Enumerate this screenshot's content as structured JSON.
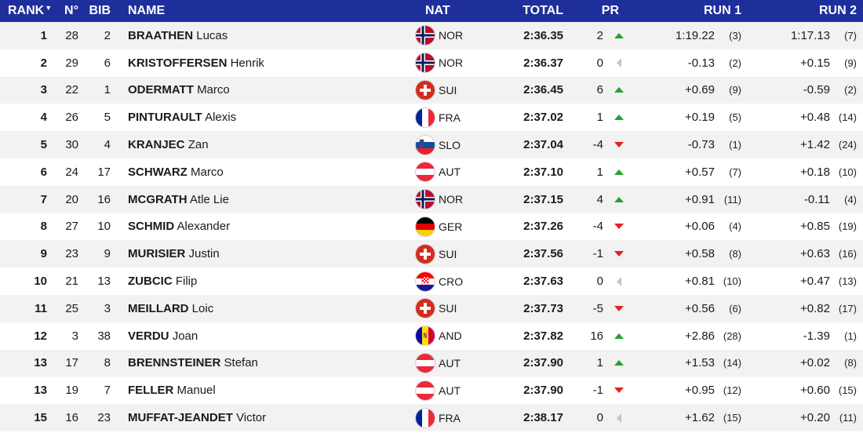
{
  "header": {
    "rank": "RANK",
    "sort_arrow": "▼",
    "no": "N°",
    "bib": "BIB",
    "name": "NAME",
    "nat": "NAT",
    "total": "TOTAL",
    "pr": "PR",
    "run1": "RUN 1",
    "run2": "RUN 2"
  },
  "colors": {
    "header_bg": "#1e2f9c",
    "up": "#22a52e",
    "down": "#e32020",
    "same": "#c4c4c4"
  },
  "rows": [
    {
      "rank": "1",
      "no": "28",
      "bib": "2",
      "last": "BRAATHEN",
      "first": "Lucas",
      "nat": "NOR",
      "total": "2:36.35",
      "pr": "2",
      "trend": "up",
      "run1": "1:19.22",
      "run1_pos": "(3)",
      "run2": "1:17.13",
      "run2_pos": "(7)"
    },
    {
      "rank": "2",
      "no": "29",
      "bib": "6",
      "last": "KRISTOFFERSEN",
      "first": "Henrik",
      "nat": "NOR",
      "total": "2:36.37",
      "pr": "0",
      "trend": "same",
      "run1": "-0.13",
      "run1_pos": "(2)",
      "run2": "+0.15",
      "run2_pos": "(9)"
    },
    {
      "rank": "3",
      "no": "22",
      "bib": "1",
      "last": "ODERMATT",
      "first": "Marco",
      "nat": "SUI",
      "total": "2:36.45",
      "pr": "6",
      "trend": "up",
      "run1": "+0.69",
      "run1_pos": "(9)",
      "run2": "-0.59",
      "run2_pos": "(2)"
    },
    {
      "rank": "4",
      "no": "26",
      "bib": "5",
      "last": "PINTURAULT",
      "first": "Alexis",
      "nat": "FRA",
      "total": "2:37.02",
      "pr": "1",
      "trend": "up",
      "run1": "+0.19",
      "run1_pos": "(5)",
      "run2": "+0.48",
      "run2_pos": "(14)"
    },
    {
      "rank": "5",
      "no": "30",
      "bib": "4",
      "last": "KRANJEC",
      "first": "Zan",
      "nat": "SLO",
      "total": "2:37.04",
      "pr": "-4",
      "trend": "down",
      "run1": "-0.73",
      "run1_pos": "(1)",
      "run2": "+1.42",
      "run2_pos": "(24)"
    },
    {
      "rank": "6",
      "no": "24",
      "bib": "17",
      "last": "SCHWARZ",
      "first": "Marco",
      "nat": "AUT",
      "total": "2:37.10",
      "pr": "1",
      "trend": "up",
      "run1": "+0.57",
      "run1_pos": "(7)",
      "run2": "+0.18",
      "run2_pos": "(10)"
    },
    {
      "rank": "7",
      "no": "20",
      "bib": "16",
      "last": "MCGRATH",
      "first": "Atle Lie",
      "nat": "NOR",
      "total": "2:37.15",
      "pr": "4",
      "trend": "up",
      "run1": "+0.91",
      "run1_pos": "(11)",
      "run2": "-0.11",
      "run2_pos": "(4)"
    },
    {
      "rank": "8",
      "no": "27",
      "bib": "10",
      "last": "SCHMID",
      "first": "Alexander",
      "nat": "GER",
      "total": "2:37.26",
      "pr": "-4",
      "trend": "down",
      "run1": "+0.06",
      "run1_pos": "(4)",
      "run2": "+0.85",
      "run2_pos": "(19)"
    },
    {
      "rank": "9",
      "no": "23",
      "bib": "9",
      "last": "MURISIER",
      "first": "Justin",
      "nat": "SUI",
      "total": "2:37.56",
      "pr": "-1",
      "trend": "down",
      "run1": "+0.58",
      "run1_pos": "(8)",
      "run2": "+0.63",
      "run2_pos": "(16)"
    },
    {
      "rank": "10",
      "no": "21",
      "bib": "13",
      "last": "ZUBCIC",
      "first": "Filip",
      "nat": "CRO",
      "total": "2:37.63",
      "pr": "0",
      "trend": "same",
      "run1": "+0.81",
      "run1_pos": "(10)",
      "run2": "+0.47",
      "run2_pos": "(13)"
    },
    {
      "rank": "11",
      "no": "25",
      "bib": "3",
      "last": "MEILLARD",
      "first": "Loic",
      "nat": "SUI",
      "total": "2:37.73",
      "pr": "-5",
      "trend": "down",
      "run1": "+0.56",
      "run1_pos": "(6)",
      "run2": "+0.82",
      "run2_pos": "(17)"
    },
    {
      "rank": "12",
      "no": "3",
      "bib": "38",
      "last": "VERDU",
      "first": "Joan",
      "nat": "AND",
      "total": "2:37.82",
      "pr": "16",
      "trend": "up",
      "run1": "+2.86",
      "run1_pos": "(28)",
      "run2": "-1.39",
      "run2_pos": "(1)"
    },
    {
      "rank": "13",
      "no": "17",
      "bib": "8",
      "last": "BRENNSTEINER",
      "first": "Stefan",
      "nat": "AUT",
      "total": "2:37.90",
      "pr": "1",
      "trend": "up",
      "run1": "+1.53",
      "run1_pos": "(14)",
      "run2": "+0.02",
      "run2_pos": "(8)"
    },
    {
      "rank": "13",
      "no": "19",
      "bib": "7",
      "last": "FELLER",
      "first": "Manuel",
      "nat": "AUT",
      "total": "2:37.90",
      "pr": "-1",
      "trend": "down",
      "run1": "+0.95",
      "run1_pos": "(12)",
      "run2": "+0.60",
      "run2_pos": "(15)"
    },
    {
      "rank": "15",
      "no": "16",
      "bib": "23",
      "last": "MUFFAT-JEANDET",
      "first": "Victor",
      "nat": "FRA",
      "total": "2:38.17",
      "pr": "0",
      "trend": "same",
      "run1": "+1.62",
      "run1_pos": "(15)",
      "run2": "+0.20",
      "run2_pos": "(11)"
    }
  ]
}
